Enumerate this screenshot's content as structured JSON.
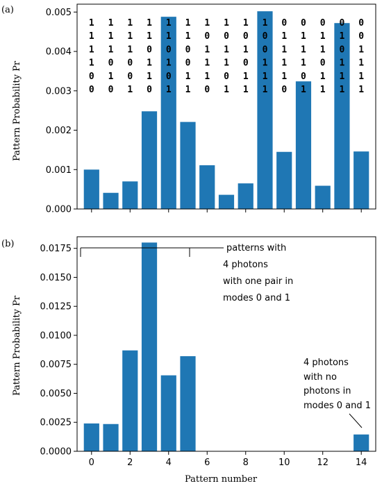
{
  "colors": {
    "bar": "#1f77b4",
    "axis": "#000000",
    "background": "#ffffff"
  },
  "chart_data": [
    {
      "type": "bar",
      "panel_label": "(a)",
      "ylabel": "Pattern Probability Pr",
      "xlabel": "",
      "x": [
        0,
        1,
        2,
        3,
        4,
        5,
        6,
        7,
        8,
        9,
        10,
        11,
        12,
        13,
        14
      ],
      "values": [
        0.001,
        0.00041,
        0.0007,
        0.00248,
        0.00488,
        0.00221,
        0.00111,
        0.00036,
        0.00065,
        0.00502,
        0.00145,
        0.00324,
        0.00059,
        0.00472,
        0.00146
      ],
      "ylim": [
        0,
        0.0052
      ],
      "yticks": [
        0,
        0.001,
        0.002,
        0.003,
        0.004,
        0.005
      ],
      "ytick_labels": [
        "0.000",
        "0.001",
        "0.002",
        "0.003",
        "0.004",
        "0.005"
      ],
      "xticks": [
        0,
        2,
        4,
        6,
        8,
        10,
        12,
        14
      ],
      "xtick_labels": [
        "",
        "",
        "",
        "",
        "",
        "",
        "",
        ""
      ],
      "patterns": [
        [
          "1",
          "1",
          "1",
          "1",
          "0",
          "0"
        ],
        [
          "1",
          "1",
          "1",
          "0",
          "1",
          "0"
        ],
        [
          "1",
          "1",
          "1",
          "0",
          "0",
          "1"
        ],
        [
          "1",
          "1",
          "0",
          "1",
          "1",
          "0"
        ],
        [
          "1",
          "1",
          "0",
          "1",
          "0",
          "1"
        ],
        [
          "1",
          "1",
          "0",
          "0",
          "1",
          "1"
        ],
        [
          "1",
          "0",
          "1",
          "1",
          "1",
          "0"
        ],
        [
          "1",
          "0",
          "1",
          "1",
          "0",
          "1"
        ],
        [
          "1",
          "0",
          "1",
          "0",
          "1",
          "1"
        ],
        [
          "1",
          "0",
          "0",
          "1",
          "1",
          "1"
        ],
        [
          "0",
          "1",
          "1",
          "1",
          "1",
          "0"
        ],
        [
          "0",
          "1",
          "1",
          "1",
          "0",
          "1"
        ],
        [
          "0",
          "1",
          "1",
          "0",
          "1",
          "1"
        ],
        [
          "0",
          "1",
          "0",
          "1",
          "1",
          "1"
        ],
        [
          "0",
          "0",
          "1",
          "1",
          "1",
          "1"
        ]
      ]
    },
    {
      "type": "bar",
      "panel_label": "(b)",
      "ylabel": "Pattern Probability Pr",
      "xlabel": "Pattern number",
      "x": [
        0,
        1,
        2,
        3,
        4,
        5,
        6,
        7,
        8,
        9,
        10,
        11,
        12,
        13,
        14
      ],
      "values": [
        0.0024,
        0.00235,
        0.0087,
        0.018,
        0.00655,
        0.0082,
        1e-05,
        1e-05,
        1e-05,
        1e-05,
        1e-05,
        1e-05,
        1e-05,
        1e-05,
        0.00145
      ],
      "ylim": [
        0,
        0.0185
      ],
      "yticks": [
        0,
        0.0025,
        0.005,
        0.0075,
        0.01,
        0.0125,
        0.015,
        0.0175
      ],
      "ytick_labels": [
        "0.0000",
        "0.0025",
        "0.0050",
        "0.0075",
        "0.0100",
        "0.0125",
        "0.0150",
        "0.0175"
      ],
      "xticks": [
        0,
        2,
        4,
        6,
        8,
        10,
        12,
        14
      ],
      "xtick_labels": [
        "0",
        "2",
        "4",
        "6",
        "8",
        "10",
        "12",
        "14"
      ],
      "annotations": [
        {
          "lines": [
            "patterns with",
            "4 photons",
            "with  one pair in",
            "modes 0 and 1"
          ]
        },
        {
          "lines": [
            "4 photons",
            "with  no",
            "photons in",
            "modes 0 and 1"
          ]
        }
      ]
    }
  ]
}
